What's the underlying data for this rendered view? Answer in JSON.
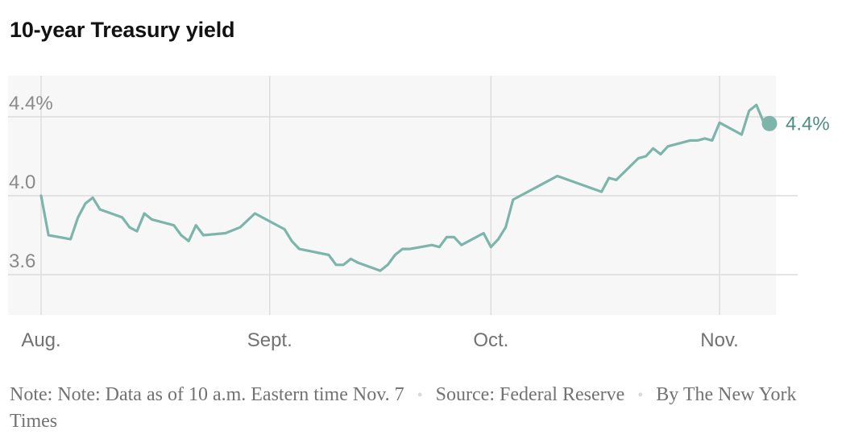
{
  "title": "10-year Treasury yield",
  "chart_data": {
    "type": "line",
    "title": "10-year Treasury yield",
    "xlabel": "",
    "ylabel": "",
    "x_domain": [
      0,
      98
    ],
    "ylim": [
      3.4,
      4.6
    ],
    "y_ticks": [
      {
        "value": 4.4,
        "label": "4.4%"
      },
      {
        "value": 4.0,
        "label": "4.0"
      },
      {
        "value": 3.6,
        "label": "3.6"
      }
    ],
    "x_ticks": [
      {
        "x": 0,
        "label": "Aug."
      },
      {
        "x": 31,
        "label": "Sept."
      },
      {
        "x": 61,
        "label": "Oct."
      },
      {
        "x": 92,
        "label": "Nov."
      }
    ],
    "grid": true,
    "series": [
      {
        "color": "#7db5ab",
        "end_label": "4.4%",
        "points": [
          [
            0,
            4.0
          ],
          [
            1,
            3.8
          ],
          [
            4,
            3.78
          ],
          [
            5,
            3.89
          ],
          [
            6,
            3.96
          ],
          [
            7,
            3.99
          ],
          [
            8,
            3.93
          ],
          [
            11,
            3.89
          ],
          [
            12,
            3.84
          ],
          [
            13,
            3.82
          ],
          [
            14,
            3.91
          ],
          [
            15,
            3.88
          ],
          [
            18,
            3.85
          ],
          [
            19,
            3.8
          ],
          [
            20,
            3.77
          ],
          [
            21,
            3.85
          ],
          [
            22,
            3.8
          ],
          [
            25,
            3.81
          ],
          [
            27,
            3.84
          ],
          [
            29,
            3.91
          ],
          [
            33,
            3.83
          ],
          [
            34,
            3.77
          ],
          [
            35,
            3.73
          ],
          [
            39,
            3.7
          ],
          [
            40,
            3.65
          ],
          [
            41,
            3.65
          ],
          [
            42,
            3.68
          ],
          [
            43,
            3.66
          ],
          [
            46,
            3.62
          ],
          [
            47,
            3.65
          ],
          [
            48,
            3.7
          ],
          [
            49,
            3.73
          ],
          [
            50,
            3.73
          ],
          [
            53,
            3.75
          ],
          [
            54,
            3.74
          ],
          [
            55,
            3.79
          ],
          [
            56,
            3.79
          ],
          [
            57,
            3.75
          ],
          [
            60,
            3.81
          ],
          [
            61,
            3.74
          ],
          [
            62,
            3.78
          ],
          [
            63,
            3.84
          ],
          [
            64,
            3.98
          ],
          [
            67,
            4.04
          ],
          [
            68,
            4.06
          ],
          [
            70,
            4.1
          ],
          [
            76,
            4.02
          ],
          [
            77,
            4.09
          ],
          [
            78,
            4.08
          ],
          [
            81,
            4.19
          ],
          [
            82,
            4.2
          ],
          [
            83,
            4.24
          ],
          [
            84,
            4.21
          ],
          [
            85,
            4.25
          ],
          [
            88,
            4.28
          ],
          [
            89,
            4.28
          ],
          [
            90,
            4.29
          ],
          [
            91,
            4.28
          ],
          [
            92,
            4.37
          ],
          [
            95,
            4.31
          ],
          [
            96,
            4.43
          ],
          [
            97,
            4.46
          ],
          [
            98,
            4.37
          ]
        ]
      }
    ]
  },
  "footer": {
    "note_label": "Note:",
    "note": "Note: Data as of 10 a.m. Eastern time Nov. 7",
    "separator": "•",
    "source_label": "Source:",
    "source": "Federal Reserve",
    "credit": "By The New York Times"
  }
}
